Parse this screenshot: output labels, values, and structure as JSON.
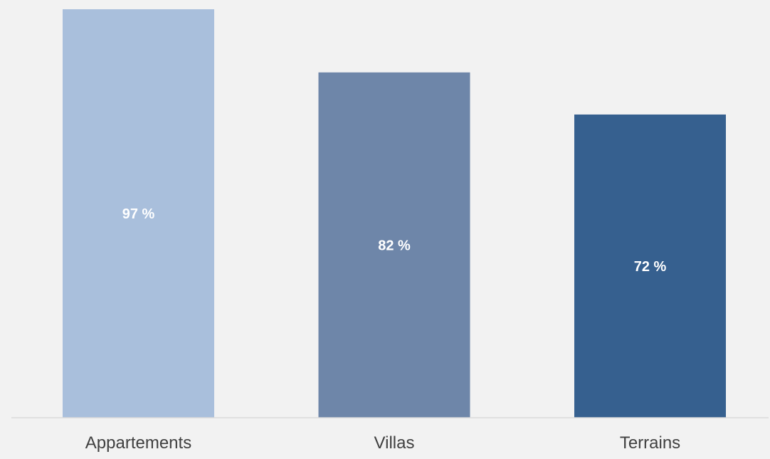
{
  "chart_data": {
    "type": "bar",
    "categories": [
      "Appartements",
      "Villas",
      "Terrains"
    ],
    "values": [
      97,
      82,
      72
    ],
    "value_labels": [
      "97 %",
      "82 %",
      "72 %"
    ],
    "ylim": [
      0,
      97
    ],
    "grid": false,
    "legend": "none",
    "colors": [
      "#a9bfdc",
      "#6e86a9",
      "#36608f"
    ]
  }
}
